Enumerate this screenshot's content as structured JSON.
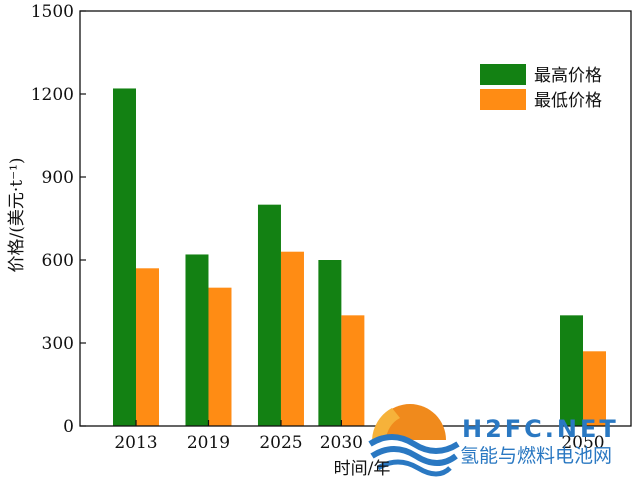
{
  "chart_data": {
    "type": "bar",
    "categories": [
      "2013",
      "2019",
      "2025",
      "2030",
      "2050"
    ],
    "series": [
      {
        "name": "最高价格",
        "color": "#138113",
        "values": [
          1220,
          620,
          800,
          600,
          400
        ]
      },
      {
        "name": "最低价格",
        "color": "#ff8c14",
        "values": [
          570,
          500,
          630,
          400,
          270
        ]
      }
    ],
    "xlabel": "时间/年",
    "ylabel": "价格/(美元·t⁻¹)",
    "ylim": [
      0,
      1500
    ],
    "yticks": [
      0,
      300,
      600,
      900,
      1200,
      1500
    ],
    "x_axis_type": "time (years, proportional spacing)",
    "grid": false,
    "legend_position": "top-right"
  },
  "watermark": {
    "latin": "H2FC.NET",
    "chinese": "氢能与燃料电池网"
  }
}
